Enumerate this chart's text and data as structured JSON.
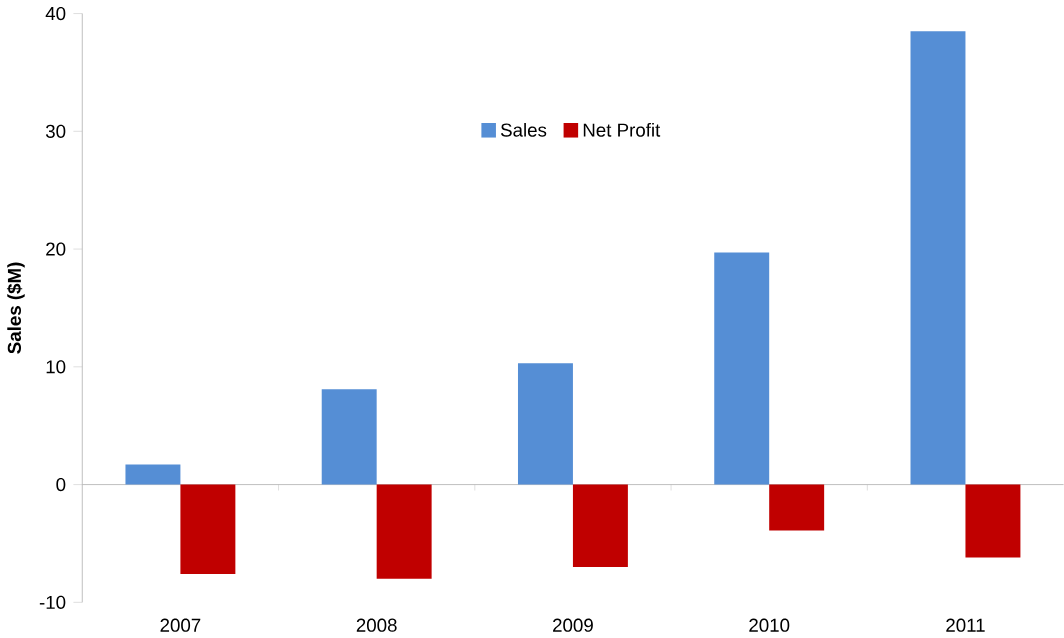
{
  "chart_data": {
    "type": "bar",
    "ylabel": "Sales ($M)",
    "categories": [
      "2007",
      "2008",
      "2009",
      "2010",
      "2011"
    ],
    "series": [
      {
        "name": "Sales",
        "color": "#558ed5",
        "values": [
          1.7,
          8.1,
          10.3,
          19.7,
          38.5
        ]
      },
      {
        "name": "Net Profit",
        "color": "#c00000",
        "values": [
          -7.6,
          -8.0,
          -7.0,
          -3.9,
          -6.2
        ]
      }
    ],
    "ylim": [
      -10,
      40
    ],
    "yticks": [
      -10,
      0,
      10,
      20,
      30,
      40
    ],
    "legend": "top"
  }
}
